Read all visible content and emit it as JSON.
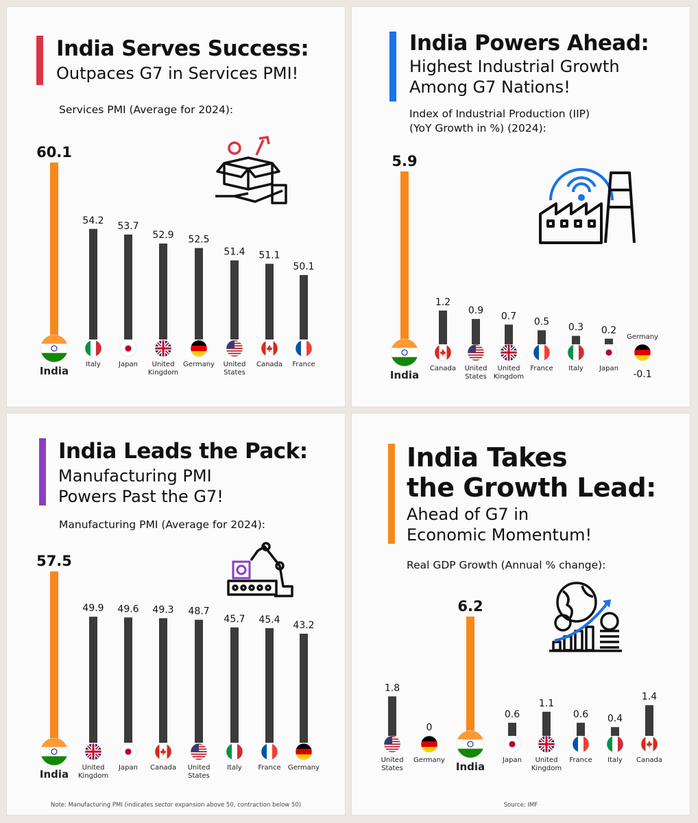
{
  "colors": {
    "india_bar": "#f7891b",
    "bar": "#3b3b3b",
    "panel1_accent": "#dc3545",
    "panel2_accent": "#1a73e8",
    "panel3_accent": "#8a3fc0",
    "panel4_accent": "#f7891b"
  },
  "panel1": {
    "title": "India Serves Success:",
    "subtitle": "Outpaces G7 in Services PMI!",
    "metric": "Services PMI (Average for 2024):",
    "icon": "service-box-icon"
  },
  "panel2": {
    "title": "India Powers Ahead:",
    "subtitle_l1": "Highest Industrial Growth",
    "subtitle_l2": "Among G7 Nations!",
    "metric_l1": "Index of Industrial Production (IIP)",
    "metric_l2": "(YoY Growth in %) (2024):",
    "icon": "factory-gear-icon"
  },
  "panel3": {
    "title": "India Leads the Pack:",
    "subtitle_l1": "Manufacturing PMI",
    "subtitle_l2": "Powers Past the G7!",
    "metric": "Manufacturing PMI (Average for 2024):",
    "note": "Note: Manufacturing PMI (indicates sector expansion above 50, contraction below 50)",
    "icon": "robot-arm-icon"
  },
  "panel4": {
    "title_l1": "India Takes",
    "title_l2": "the Growth Lead:",
    "subtitle_l1": "Ahead of G7 in",
    "subtitle_l2": "Economic Momentum!",
    "metric": "Real GDP Growth (Annual % change):",
    "source": "Source: IMF",
    "icon": "globe-growth-icon"
  },
  "chart_data": [
    {
      "type": "bar",
      "metric": "Services PMI (Average for 2024):",
      "categories": [
        "India",
        "Italy",
        "Japan",
        "United Kingdom",
        "Germany",
        "United States",
        "Canada",
        "France"
      ],
      "values": [
        60.1,
        54.2,
        53.7,
        52.9,
        52.5,
        51.4,
        51.1,
        50.1
      ]
    },
    {
      "type": "bar",
      "metric": "Index of Industrial Production (IIP) (YoY Growth in %) (2024):",
      "categories": [
        "India",
        "Canada",
        "United States",
        "United Kingdom",
        "France",
        "Italy",
        "Japan",
        "Germany"
      ],
      "values": [
        5.9,
        1.2,
        0.9,
        0.7,
        0.5,
        0.3,
        0.2,
        -0.1
      ]
    },
    {
      "type": "bar",
      "metric": "Manufacturing PMI (Average for 2024):",
      "categories": [
        "India",
        "United Kingdom",
        "Japan",
        "Canada",
        "United States",
        "Italy",
        "France",
        "Germany"
      ],
      "values": [
        57.5,
        49.9,
        49.6,
        49.3,
        48.7,
        45.7,
        45.4,
        43.2
      ]
    },
    {
      "type": "bar",
      "metric": "Real GDP Growth (Annual % change):",
      "categories": [
        "United States",
        "Germany",
        "India",
        "Japan",
        "United Kingdom",
        "France",
        "Italy",
        "Canada"
      ],
      "values": [
        1.8,
        0,
        6.2,
        0.6,
        1.1,
        0.6,
        0.4,
        1.4
      ]
    }
  ]
}
